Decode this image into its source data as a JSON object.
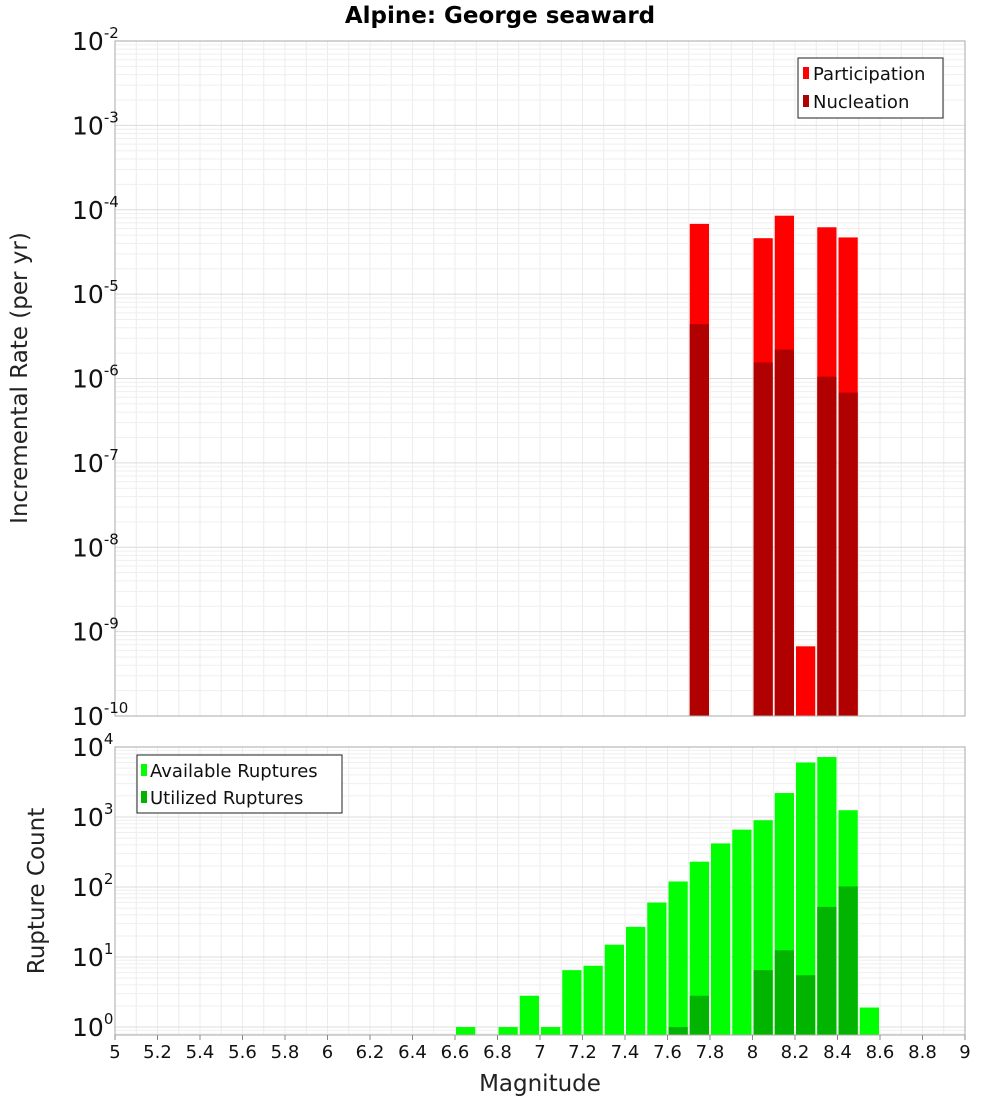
{
  "title": "Alpine: George seaward",
  "xlabel": "Magnitude",
  "chart_data": [
    {
      "type": "bar",
      "ylabel": "Incremental Rate (per yr)",
      "yscale": "log",
      "ylim": [
        1e-10,
        0.01
      ],
      "y_tick_exponents": [
        -10,
        -9,
        -8,
        -7,
        -6,
        -5,
        -4,
        -3,
        -2
      ],
      "legend_position": "top-right",
      "legend": [
        "Participation",
        "Nucleation"
      ],
      "series": [
        {
          "name": "Participation",
          "color": "#ff0000",
          "x": [
            7.75,
            8.05,
            8.15,
            8.25,
            8.35,
            8.45
          ],
          "values": [
            6.8e-05,
            4.6e-05,
            8.5e-05,
            6.7e-10,
            6.2e-05,
            4.7e-05
          ]
        },
        {
          "name": "Nucleation",
          "color": "#b00000",
          "x": [
            7.75,
            8.05,
            8.15,
            8.35,
            8.45
          ],
          "values": [
            4.4e-06,
            1.55e-06,
            2.2e-06,
            1.05e-06,
            6.8e-07
          ]
        }
      ]
    },
    {
      "type": "bar",
      "ylabel": "Rupture Count",
      "yscale": "log",
      "ylim": [
        0.77,
        10000
      ],
      "y_tick_exponents": [
        0,
        1,
        2,
        3,
        4
      ],
      "legend_position": "top-left",
      "legend": [
        "Available Ruptures",
        "Utilized Ruptures"
      ],
      "series": [
        {
          "name": "Available Ruptures",
          "color": "#00ff00",
          "x": [
            6.65,
            6.85,
            6.95,
            7.05,
            7.15,
            7.25,
            7.35,
            7.45,
            7.55,
            7.65,
            7.75,
            7.85,
            7.95,
            8.05,
            8.15,
            8.25,
            8.35,
            8.45,
            8.55
          ],
          "values": [
            1,
            1,
            2.8,
            1,
            6.5,
            7.5,
            15,
            27,
            60,
            120,
            230,
            420,
            660,
            900,
            2200,
            6000,
            7200,
            1250,
            1.9
          ]
        },
        {
          "name": "Utilized Ruptures",
          "color": "#00b400",
          "x": [
            7.65,
            7.75,
            8.05,
            8.15,
            8.25,
            8.35,
            8.45
          ],
          "values": [
            1,
            2.8,
            6.5,
            12.5,
            5.5,
            52,
            102
          ]
        }
      ]
    }
  ],
  "x_axis": {
    "range": [
      5,
      9
    ],
    "tick_step": 0.2,
    "tick_labels": [
      "5",
      "5.2",
      "5.4",
      "5.6",
      "5.8",
      "6",
      "6.2",
      "6.4",
      "6.6",
      "6.8",
      "7",
      "7.2",
      "7.4",
      "7.6",
      "7.8",
      "8",
      "8.2",
      "8.4",
      "8.6",
      "8.8",
      "9"
    ],
    "bin_width": 0.1
  },
  "top_legend": {
    "item0": "Participation",
    "item1": "Nucleation"
  },
  "bottom_legend": {
    "item0": "Available Ruptures",
    "item1": "Utilized Ruptures"
  }
}
